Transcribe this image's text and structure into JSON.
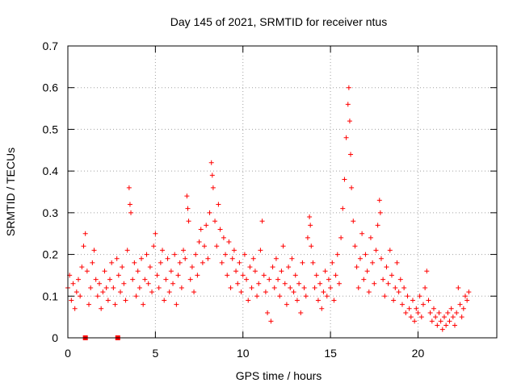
{
  "chart_data": {
    "type": "scatter",
    "title": "Day 145 of 2021, SRMTID for receiver ntus",
    "xlabel": "GPS time / hours",
    "ylabel": "SRMTID / TECUs",
    "xlim": [
      0,
      24.5
    ],
    "ylim": [
      0,
      0.7
    ],
    "x_ticks": [
      0,
      5,
      10,
      15,
      20
    ],
    "y_ticks": [
      0,
      0.1,
      0.2,
      0.3,
      0.4,
      0.5,
      0.6,
      0.7
    ],
    "x_tick_labels": [
      "0",
      "5",
      "10",
      "15",
      "20"
    ],
    "y_tick_labels": [
      "0",
      "0.1",
      "0.2",
      "0.3",
      "0.4",
      "0.5",
      "0.6",
      "0.7"
    ],
    "grid": true,
    "marker": "+",
    "color": "#ff0000",
    "note": "Dense scatter of roughly 1500 points; listed points are representative samples read off the figure.",
    "series": [
      {
        "name": "SRMTID",
        "points": [
          [
            0.0,
            0.12
          ],
          [
            0.1,
            0.15
          ],
          [
            0.2,
            0.09
          ],
          [
            0.3,
            0.13
          ],
          [
            0.4,
            0.07
          ],
          [
            0.5,
            0.11
          ],
          [
            0.6,
            0.14
          ],
          [
            0.7,
            0.1
          ],
          [
            0.8,
            0.17
          ],
          [
            0.9,
            0.22
          ],
          [
            1.0,
            0.25
          ],
          [
            1.1,
            0.16
          ],
          [
            1.2,
            0.08
          ],
          [
            1.3,
            0.12
          ],
          [
            1.4,
            0.18
          ],
          [
            1.5,
            0.21
          ],
          [
            1.6,
            0.14
          ],
          [
            1.7,
            0.1
          ],
          [
            1.8,
            0.13
          ],
          [
            1.9,
            0.07
          ],
          [
            2.0,
            0.11
          ],
          [
            2.1,
            0.16
          ],
          [
            2.2,
            0.12
          ],
          [
            2.3,
            0.09
          ],
          [
            2.4,
            0.14
          ],
          [
            2.5,
            0.18
          ],
          [
            2.6,
            0.12
          ],
          [
            2.7,
            0.08
          ],
          [
            2.8,
            0.19
          ],
          [
            2.9,
            0.15
          ],
          [
            3.0,
            0.11
          ],
          [
            3.1,
            0.17
          ],
          [
            3.2,
            0.13
          ],
          [
            3.3,
            0.09
          ],
          [
            3.4,
            0.21
          ],
          [
            3.5,
            0.36
          ],
          [
            3.55,
            0.32
          ],
          [
            3.6,
            0.3
          ],
          [
            3.7,
            0.14
          ],
          [
            3.8,
            0.18
          ],
          [
            3.9,
            0.1
          ],
          [
            4.0,
            0.16
          ],
          [
            4.1,
            0.12
          ],
          [
            4.2,
            0.19
          ],
          [
            4.3,
            0.08
          ],
          [
            4.4,
            0.14
          ],
          [
            4.5,
            0.2
          ],
          [
            4.6,
            0.13
          ],
          [
            4.7,
            0.17
          ],
          [
            4.8,
            0.11
          ],
          [
            4.9,
            0.22
          ],
          [
            5.0,
            0.25
          ],
          [
            5.1,
            0.15
          ],
          [
            5.2,
            0.12
          ],
          [
            5.3,
            0.18
          ],
          [
            5.4,
            0.21
          ],
          [
            5.5,
            0.09
          ],
          [
            5.6,
            0.14
          ],
          [
            5.7,
            0.19
          ],
          [
            5.8,
            0.11
          ],
          [
            5.9,
            0.16
          ],
          [
            6.0,
            0.13
          ],
          [
            6.1,
            0.2
          ],
          [
            6.2,
            0.08
          ],
          [
            6.3,
            0.15
          ],
          [
            6.4,
            0.18
          ],
          [
            6.5,
            0.12
          ],
          [
            6.6,
            0.21
          ],
          [
            6.7,
            0.19
          ],
          [
            6.8,
            0.34
          ],
          [
            6.85,
            0.31
          ],
          [
            6.9,
            0.28
          ],
          [
            7.0,
            0.14
          ],
          [
            7.1,
            0.17
          ],
          [
            7.2,
            0.11
          ],
          [
            7.3,
            0.2
          ],
          [
            7.4,
            0.15
          ],
          [
            7.5,
            0.23
          ],
          [
            7.6,
            0.26
          ],
          [
            7.7,
            0.18
          ],
          [
            7.8,
            0.22
          ],
          [
            7.9,
            0.27
          ],
          [
            8.0,
            0.19
          ],
          [
            8.1,
            0.3
          ],
          [
            8.2,
            0.42
          ],
          [
            8.25,
            0.39
          ],
          [
            8.3,
            0.36
          ],
          [
            8.4,
            0.28
          ],
          [
            8.5,
            0.22
          ],
          [
            8.6,
            0.32
          ],
          [
            8.7,
            0.26
          ],
          [
            8.8,
            0.18
          ],
          [
            8.9,
            0.24
          ],
          [
            9.0,
            0.2
          ],
          [
            9.1,
            0.15
          ],
          [
            9.2,
            0.23
          ],
          [
            9.3,
            0.12
          ],
          [
            9.4,
            0.19
          ],
          [
            9.5,
            0.21
          ],
          [
            9.6,
            0.16
          ],
          [
            9.7,
            0.13
          ],
          [
            9.8,
            0.18
          ],
          [
            9.9,
            0.11
          ],
          [
            10.0,
            0.15
          ],
          [
            10.1,
            0.2
          ],
          [
            10.2,
            0.14
          ],
          [
            10.3,
            0.09
          ],
          [
            10.4,
            0.17
          ],
          [
            10.5,
            0.12
          ],
          [
            10.6,
            0.19
          ],
          [
            10.7,
            0.16
          ],
          [
            10.8,
            0.1
          ],
          [
            10.9,
            0.13
          ],
          [
            11.0,
            0.21
          ],
          [
            11.1,
            0.28
          ],
          [
            11.2,
            0.15
          ],
          [
            11.3,
            0.11
          ],
          [
            11.4,
            0.06
          ],
          [
            11.5,
            0.14
          ],
          [
            11.6,
            0.04
          ],
          [
            11.7,
            0.17
          ],
          [
            11.8,
            0.12
          ],
          [
            11.9,
            0.19
          ],
          [
            12.0,
            0.14
          ],
          [
            12.1,
            0.1
          ],
          [
            12.2,
            0.16
          ],
          [
            12.3,
            0.22
          ],
          [
            12.4,
            0.13
          ],
          [
            12.5,
            0.08
          ],
          [
            12.6,
            0.17
          ],
          [
            12.7,
            0.12
          ],
          [
            12.8,
            0.19
          ],
          [
            12.9,
            0.11
          ],
          [
            13.0,
            0.15
          ],
          [
            13.1,
            0.09
          ],
          [
            13.2,
            0.13
          ],
          [
            13.3,
            0.06
          ],
          [
            13.4,
            0.18
          ],
          [
            13.5,
            0.12
          ],
          [
            13.6,
            0.1
          ],
          [
            13.7,
            0.24
          ],
          [
            13.8,
            0.29
          ],
          [
            13.85,
            0.27
          ],
          [
            13.9,
            0.22
          ],
          [
            14.0,
            0.18
          ],
          [
            14.1,
            0.12
          ],
          [
            14.2,
            0.15
          ],
          [
            14.3,
            0.09
          ],
          [
            14.4,
            0.13
          ],
          [
            14.5,
            0.07
          ],
          [
            14.6,
            0.11
          ],
          [
            14.7,
            0.16
          ],
          [
            14.8,
            0.1
          ],
          [
            14.9,
            0.14
          ],
          [
            15.0,
            0.12
          ],
          [
            15.1,
            0.18
          ],
          [
            15.2,
            0.09
          ],
          [
            15.3,
            0.15
          ],
          [
            15.4,
            0.2
          ],
          [
            15.5,
            0.13
          ],
          [
            15.6,
            0.24
          ],
          [
            15.7,
            0.31
          ],
          [
            15.8,
            0.38
          ],
          [
            15.9,
            0.48
          ],
          [
            16.0,
            0.56
          ],
          [
            16.05,
            0.6
          ],
          [
            16.1,
            0.52
          ],
          [
            16.15,
            0.44
          ],
          [
            16.2,
            0.36
          ],
          [
            16.3,
            0.28
          ],
          [
            16.4,
            0.22
          ],
          [
            16.5,
            0.17
          ],
          [
            16.6,
            0.12
          ],
          [
            16.7,
            0.19
          ],
          [
            16.8,
            0.25
          ],
          [
            16.9,
            0.14
          ],
          [
            17.0,
            0.2
          ],
          [
            17.1,
            0.16
          ],
          [
            17.2,
            0.11
          ],
          [
            17.3,
            0.24
          ],
          [
            17.4,
            0.18
          ],
          [
            17.5,
            0.13
          ],
          [
            17.6,
            0.21
          ],
          [
            17.7,
            0.27
          ],
          [
            17.8,
            0.33
          ],
          [
            17.85,
            0.3
          ],
          [
            17.9,
            0.19
          ],
          [
            18.0,
            0.14
          ],
          [
            18.1,
            0.1
          ],
          [
            18.2,
            0.17
          ],
          [
            18.3,
            0.13
          ],
          [
            18.4,
            0.21
          ],
          [
            18.5,
            0.15
          ],
          [
            18.6,
            0.09
          ],
          [
            18.7,
            0.12
          ],
          [
            18.8,
            0.18
          ],
          [
            18.9,
            0.11
          ],
          [
            19.0,
            0.14
          ],
          [
            19.1,
            0.08
          ],
          [
            19.2,
            0.12
          ],
          [
            19.3,
            0.06
          ],
          [
            19.4,
            0.1
          ],
          [
            19.5,
            0.07
          ],
          [
            19.6,
            0.05
          ],
          [
            19.7,
            0.09
          ],
          [
            19.8,
            0.04
          ],
          [
            19.9,
            0.07
          ],
          [
            20.0,
            0.06
          ],
          [
            20.1,
            0.1
          ],
          [
            20.2,
            0.05
          ],
          [
            20.3,
            0.08
          ],
          [
            20.4,
            0.12
          ],
          [
            20.5,
            0.16
          ],
          [
            20.6,
            0.09
          ],
          [
            20.7,
            0.06
          ],
          [
            20.8,
            0.04
          ],
          [
            20.9,
            0.07
          ],
          [
            21.0,
            0.05
          ],
          [
            21.1,
            0.03
          ],
          [
            21.2,
            0.06
          ],
          [
            21.3,
            0.04
          ],
          [
            21.4,
            0.02
          ],
          [
            21.5,
            0.05
          ],
          [
            21.6,
            0.03
          ],
          [
            21.7,
            0.06
          ],
          [
            21.8,
            0.04
          ],
          [
            21.9,
            0.07
          ],
          [
            22.0,
            0.05
          ],
          [
            22.1,
            0.03
          ],
          [
            22.2,
            0.06
          ],
          [
            22.3,
            0.12
          ],
          [
            22.4,
            0.08
          ],
          [
            22.5,
            0.05
          ],
          [
            22.6,
            0.07
          ],
          [
            22.7,
            0.1
          ],
          [
            22.8,
            0.09
          ],
          [
            22.9,
            0.11
          ]
        ]
      }
    ],
    "filled_markers": [
      [
        1.0,
        0.0
      ],
      [
        2.85,
        0.0
      ]
    ]
  }
}
